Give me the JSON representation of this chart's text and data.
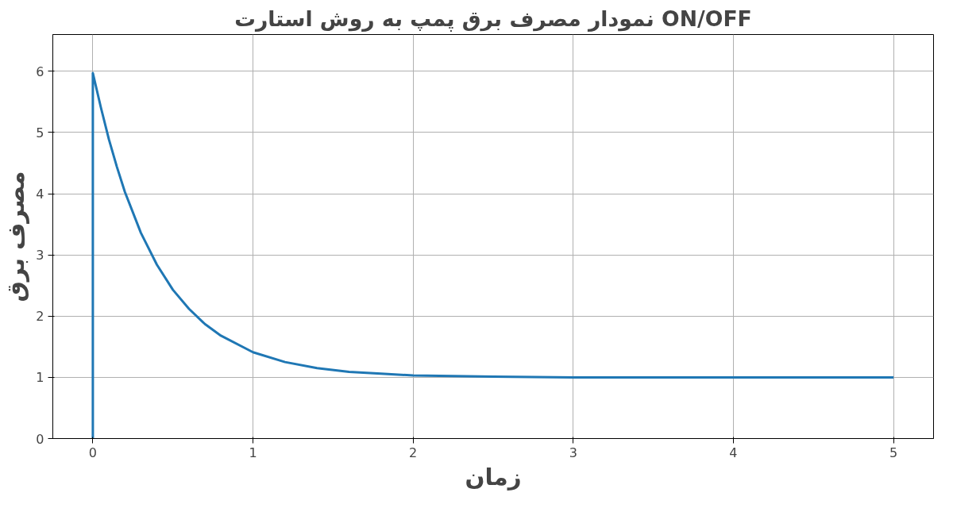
{
  "chart_data": {
    "type": "line",
    "title": "نمودار مصرف برق پمپ به روش استارت ON/OFF",
    "xlabel": "زمان",
    "ylabel": "مصرف برق",
    "x": [
      0,
      0,
      0.05,
      0.1,
      0.15,
      0.2,
      0.3,
      0.4,
      0.5,
      0.6,
      0.7,
      0.8,
      1.0,
      1.2,
      1.4,
      1.6,
      1.8,
      2.0,
      2.5,
      3,
      4,
      5
    ],
    "series": [
      {
        "color": "#1f77b4",
        "values": [
          0,
          5.97,
          5.41,
          4.89,
          4.44,
          4.03,
          3.36,
          2.84,
          2.43,
          2.12,
          1.87,
          1.68,
          1.41,
          1.25,
          1.15,
          1.09,
          1.06,
          1.03,
          1.01,
          1.0,
          1.0,
          1.0
        ]
      }
    ],
    "xlim": [
      -0.25,
      5.25
    ],
    "ylim": [
      0,
      6.6
    ],
    "xticks": [
      0,
      1,
      2,
      3,
      4,
      5
    ],
    "yticks": [
      0,
      1,
      2,
      3,
      4,
      5,
      6
    ],
    "grid": true,
    "line_style": "solid"
  }
}
